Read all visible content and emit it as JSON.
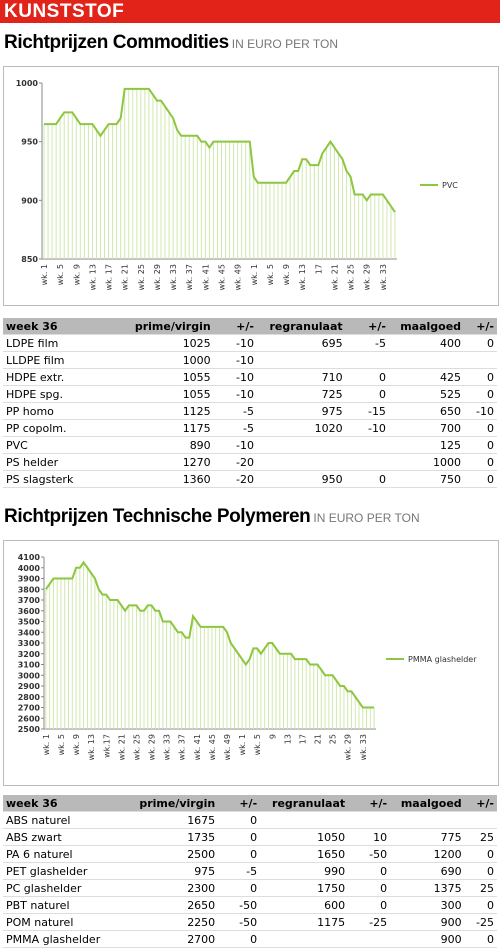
{
  "header": {
    "title": "KUNSTSTOF"
  },
  "sections": [
    {
      "title": "Richtprijzen Commodities",
      "unit": "IN EURO PER TON"
    },
    {
      "title": "Richtprijzen Technische Polymeren",
      "unit": "IN EURO PER TON"
    }
  ],
  "chart_data": [
    {
      "type": "line",
      "legend": "right",
      "categories": [
        "wk. 1",
        null,
        null,
        null,
        "wk. 5",
        null,
        null,
        null,
        "wk. 9",
        null,
        null,
        null,
        "wk. 13",
        null,
        null,
        null,
        "wk. 17",
        null,
        null,
        null,
        "wk. 21",
        null,
        null,
        null,
        "wk. 25",
        null,
        null,
        null,
        "wk. 29",
        null,
        null,
        null,
        "wk. 33",
        null,
        null,
        null,
        "wk. 37",
        null,
        null,
        null,
        "wk. 41",
        null,
        null,
        null,
        "wk. 45",
        null,
        null,
        null,
        "wk. 49",
        null,
        null,
        null,
        "wk. 1",
        null,
        null,
        null,
        "wk. 5",
        null,
        null,
        null,
        "wk. 9",
        null,
        null,
        null,
        "wk. 13",
        null,
        null,
        null,
        "17",
        null,
        null,
        null,
        "wk. 21",
        null,
        null,
        null,
        "wk. 25",
        null,
        null,
        null,
        "wk. 29",
        null,
        null,
        null,
        "wk. 33",
        null,
        null,
        null
      ],
      "series": [
        {
          "name": "PVC",
          "color": "#8dc63f",
          "values": [
            965,
            965,
            965,
            965,
            970,
            975,
            975,
            975,
            970,
            965,
            965,
            965,
            965,
            960,
            955,
            960,
            965,
            965,
            965,
            970,
            995,
            995,
            995,
            995,
            995,
            995,
            995,
            990,
            985,
            985,
            980,
            975,
            970,
            960,
            955,
            955,
            955,
            955,
            955,
            950,
            950,
            945,
            950,
            950,
            950,
            950,
            950,
            950,
            950,
            950,
            950,
            950,
            920,
            915,
            915,
            915,
            915,
            915,
            915,
            915,
            915,
            920,
            925,
            925,
            935,
            935,
            930,
            930,
            930,
            940,
            945,
            950,
            945,
            940,
            935,
            925,
            920,
            905,
            905,
            905,
            900,
            905,
            905,
            905,
            905,
            900,
            895,
            890
          ]
        }
      ],
      "ylim": [
        850,
        1000
      ],
      "yticks": [
        850,
        900,
        950,
        1000
      ]
    },
    {
      "type": "line",
      "legend": "right",
      "categories": [
        "wk. 1",
        null,
        null,
        null,
        "wk. 5",
        null,
        null,
        null,
        "wk. 9",
        null,
        null,
        null,
        "wk. 13",
        null,
        null,
        null,
        "wk.17",
        null,
        null,
        null,
        "wk. 21",
        null,
        null,
        null,
        "wk. 25",
        null,
        null,
        null,
        "wk. 29",
        null,
        null,
        null,
        "wk. 33",
        null,
        null,
        null,
        "wk. 37",
        null,
        null,
        null,
        "wk. 41",
        null,
        null,
        null,
        "wk. 45",
        null,
        null,
        null,
        "wk. 49",
        null,
        null,
        null,
        "wk. 1",
        null,
        null,
        null,
        "wk. 5",
        null,
        null,
        null,
        "9",
        null,
        null,
        null,
        "13",
        null,
        null,
        null,
        "17",
        null,
        null,
        null,
        "21",
        null,
        null,
        null,
        "25",
        null,
        null,
        null,
        "wk. 29",
        null,
        null,
        null,
        "wk. 33",
        null,
        null,
        null
      ],
      "series": [
        {
          "name": "PMMA glashelder",
          "color": "#8dc63f",
          "values": [
            3800,
            3850,
            3900,
            3900,
            3900,
            3900,
            3900,
            3900,
            4000,
            4000,
            4050,
            4000,
            3950,
            3900,
            3800,
            3750,
            3750,
            3700,
            3700,
            3700,
            3650,
            3600,
            3650,
            3650,
            3650,
            3600,
            3600,
            3650,
            3650,
            3600,
            3600,
            3500,
            3500,
            3500,
            3450,
            3400,
            3400,
            3350,
            3350,
            3550,
            3500,
            3450,
            3450,
            3450,
            3450,
            3450,
            3450,
            3450,
            3400,
            3300,
            3250,
            3200,
            3150,
            3100,
            3150,
            3250,
            3250,
            3200,
            3250,
            3300,
            3300,
            3250,
            3200,
            3200,
            3200,
            3200,
            3150,
            3150,
            3150,
            3150,
            3100,
            3100,
            3100,
            3050,
            3000,
            3000,
            3000,
            2950,
            2900,
            2900,
            2850,
            2850,
            2800,
            2750,
            2700,
            2700,
            2700,
            2700
          ]
        }
      ],
      "ylim": [
        2500,
        4100
      ],
      "yticks": [
        2500,
        2600,
        2700,
        2800,
        2900,
        3000,
        3100,
        3200,
        3300,
        3400,
        3500,
        3600,
        3700,
        3800,
        3900,
        4000,
        4100
      ]
    }
  ],
  "tables": [
    {
      "header": [
        "week 36",
        "prime/virgin",
        "+/-",
        "regranulaat",
        "+/-",
        "maalgoed",
        "+/-"
      ],
      "rows": [
        [
          "LDPE film",
          "1025",
          "-10",
          "695",
          "-5",
          "400",
          "0"
        ],
        [
          "LLDPE film",
          "1000",
          "-10",
          null,
          null,
          null,
          null
        ],
        [
          "HDPE extr.",
          "1055",
          "-10",
          "710",
          "0",
          "425",
          "0"
        ],
        [
          "HDPE spg.",
          "1055",
          "-10",
          "725",
          "0",
          "525",
          "0"
        ],
        [
          "PP homo",
          "1125",
          "-5",
          "975",
          "-15",
          "650",
          "-10"
        ],
        [
          "PP copolm.",
          "1175",
          "-5",
          "1020",
          "-10",
          "700",
          "0"
        ],
        [
          "PVC",
          "890",
          "-10",
          null,
          null,
          "125",
          "0"
        ],
        [
          "PS helder",
          "1270",
          "-20",
          null,
          null,
          "1000",
          "0"
        ],
        [
          "PS slagsterk",
          "1360",
          "-20",
          "950",
          "0",
          "750",
          "0"
        ]
      ]
    },
    {
      "header": [
        "week 36",
        "prime/virgin",
        "+/-",
        "regranulaat",
        "+/-",
        "maalgoed",
        "+/-"
      ],
      "rows": [
        [
          "ABS naturel",
          "1675",
          "0",
          null,
          null,
          null,
          null
        ],
        [
          "ABS zwart",
          "1735",
          "0",
          "1050",
          "10",
          "775",
          "25"
        ],
        [
          "PA 6 naturel",
          "2500",
          "0",
          "1650",
          "-50",
          "1200",
          "0"
        ],
        [
          "PET glashelder",
          "975",
          "-5",
          "990",
          "0",
          "690",
          "0"
        ],
        [
          "PC glashelder",
          "2300",
          "0",
          "1750",
          "0",
          "1375",
          "25"
        ],
        [
          "PBT naturel",
          "2650",
          "-50",
          "600",
          "0",
          "300",
          "0"
        ],
        [
          "POM naturel",
          "2250",
          "-50",
          "1175",
          "-25",
          "900",
          "-25"
        ],
        [
          "PMMA glashelder",
          "2700",
          "0",
          null,
          null,
          "900",
          "0"
        ]
      ]
    }
  ]
}
